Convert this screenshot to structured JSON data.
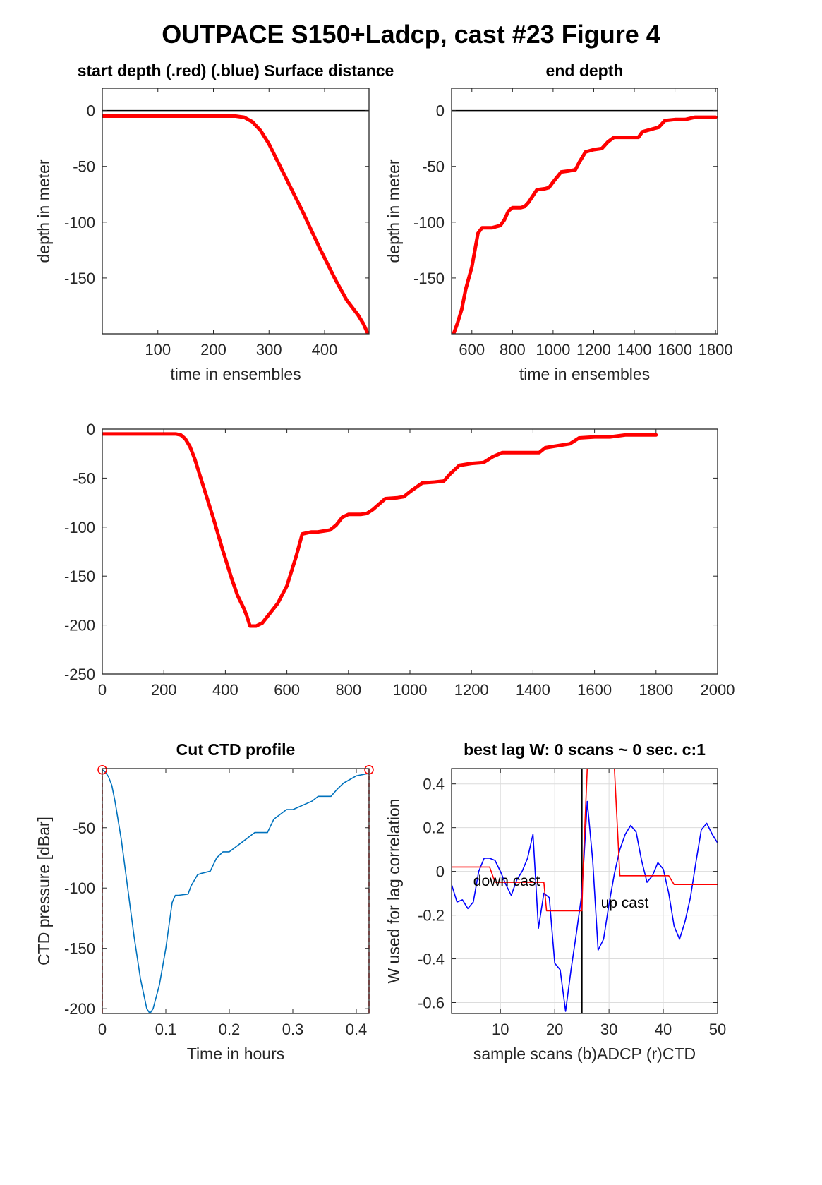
{
  "figure_title": "OUTPACE S150+Ladcp, cast #23    Figure 4",
  "colors": {
    "red": "#ff0000",
    "blue": "#0000ff",
    "ctd_blue": "#0072bd",
    "axis": "#262626",
    "grid": "#dcdcdc"
  },
  "chart_data": [
    {
      "type": "line",
      "title": "start depth (.red) (.blue) Surface distance",
      "xlabel": "time in ensembles",
      "ylabel": "depth in meter",
      "xlim": [
        0,
        480
      ],
      "ylim": [
        -200,
        20
      ],
      "xticks": [
        100,
        200,
        300,
        400
      ],
      "yticks": [
        -150,
        -100,
        -50,
        0
      ],
      "hline": 0,
      "series": [
        {
          "color": "#ff0000",
          "x": [
            0,
            100,
            200,
            240,
            255,
            270,
            285,
            300,
            330,
            360,
            390,
            420,
            440,
            460,
            470,
            478
          ],
          "y": [
            -5,
            -5,
            -5,
            -5,
            -6,
            -10,
            -18,
            -30,
            -60,
            -90,
            -122,
            -152,
            -170,
            -183,
            -191,
            -200
          ]
        }
      ]
    },
    {
      "type": "line",
      "title": "end depth",
      "xlabel": "time in ensembles",
      "ylabel": "depth in meter",
      "xlim": [
        500,
        1810
      ],
      "ylim": [
        -200,
        20
      ],
      "xticks": [
        600,
        800,
        1000,
        1200,
        1400,
        1600,
        1800
      ],
      "yticks": [
        -150,
        -100,
        -50,
        0
      ],
      "hline": 0,
      "series": [
        {
          "color": "#ff0000",
          "x": [
            510,
            530,
            550,
            570,
            600,
            630,
            650,
            680,
            700,
            720,
            740,
            760,
            780,
            800,
            840,
            860,
            880,
            920,
            960,
            980,
            1000,
            1040,
            1080,
            1110,
            1130,
            1160,
            1200,
            1240,
            1270,
            1300,
            1340,
            1380,
            1420,
            1440,
            1500,
            1520,
            1550,
            1600,
            1650,
            1700,
            1750,
            1800
          ],
          "y": [
            -200,
            -190,
            -178,
            -160,
            -140,
            -110,
            -105,
            -105,
            -105,
            -104,
            -103,
            -98,
            -90,
            -87,
            -87,
            -86,
            -82,
            -71,
            -70,
            -69,
            -64,
            -55,
            -54,
            -53,
            -46,
            -37,
            -35,
            -34,
            -28,
            -24,
            -24,
            -24,
            -24,
            -19,
            -16,
            -15,
            -9,
            -8,
            -8,
            -6,
            -6,
            -6
          ]
        }
      ]
    },
    {
      "type": "line",
      "title": "",
      "xlabel": "",
      "ylabel": "",
      "xlim": [
        0,
        2000
      ],
      "ylim": [
        -250,
        0
      ],
      "xticks": [
        0,
        200,
        400,
        600,
        800,
        1000,
        1200,
        1400,
        1600,
        1800,
        2000
      ],
      "yticks": [
        -250,
        -200,
        -150,
        -100,
        -50,
        0
      ],
      "series": [
        {
          "color": "#ff0000",
          "x": [
            0,
            100,
            200,
            240,
            255,
            270,
            285,
            300,
            330,
            360,
            390,
            420,
            440,
            460,
            470,
            480,
            500,
            520,
            540,
            570,
            600,
            630,
            650,
            680,
            700,
            720,
            740,
            760,
            780,
            800,
            840,
            860,
            880,
            920,
            960,
            980,
            1000,
            1040,
            1080,
            1110,
            1130,
            1160,
            1200,
            1240,
            1270,
            1300,
            1340,
            1380,
            1420,
            1440,
            1500,
            1520,
            1550,
            1600,
            1650,
            1700,
            1750,
            1800
          ],
          "y": [
            -5,
            -5,
            -5,
            -5,
            -6,
            -10,
            -18,
            -30,
            -60,
            -90,
            -122,
            -152,
            -170,
            -183,
            -191,
            -201,
            -201,
            -198,
            -190,
            -178,
            -160,
            -130,
            -107,
            -105,
            -105,
            -104,
            -103,
            -98,
            -90,
            -87,
            -87,
            -86,
            -82,
            -71,
            -70,
            -69,
            -64,
            -55,
            -54,
            -53,
            -46,
            -37,
            -35,
            -34,
            -28,
            -24,
            -24,
            -24,
            -24,
            -19,
            -16,
            -15,
            -9,
            -8,
            -8,
            -6,
            -6,
            -6
          ]
        }
      ]
    },
    {
      "type": "line",
      "title": "Cut CTD profile",
      "xlabel": "Time in hours",
      "ylabel": "CTD pressure [dBar]",
      "xlim": [
        0,
        0.42
      ],
      "ylim": [
        -204,
        -1
      ],
      "xticks": [
        0,
        0.1,
        0.2,
        0.3,
        0.4
      ],
      "yticks": [
        -200,
        -150,
        -100,
        -50
      ],
      "series": [
        {
          "color": "#0072bd",
          "x": [
            0,
            0.005,
            0.01,
            0.015,
            0.02,
            0.03,
            0.04,
            0.05,
            0.06,
            0.07,
            0.075,
            0.08,
            0.09,
            0.1,
            0.11,
            0.115,
            0.12,
            0.135,
            0.14,
            0.15,
            0.155,
            0.17,
            0.18,
            0.19,
            0.2,
            0.22,
            0.24,
            0.26,
            0.27,
            0.29,
            0.3,
            0.33,
            0.34,
            0.36,
            0.37,
            0.38,
            0.4,
            0.42
          ],
          "y": [
            -2,
            -4,
            -8,
            -15,
            -28,
            -60,
            -100,
            -140,
            -175,
            -200,
            -204,
            -200,
            -180,
            -150,
            -112,
            -106,
            -106,
            -105,
            -98,
            -89,
            -88,
            -86,
            -75,
            -70,
            -70,
            -62,
            -54,
            -54,
            -43,
            -35,
            -35,
            -28,
            -24,
            -24,
            -18,
            -13,
            -7,
            -5
          ]
        }
      ],
      "markers": [
        {
          "x": 0,
          "y": -2
        },
        {
          "x": 0.42,
          "y": -2
        }
      ],
      "vlines": [
        0,
        0.42
      ]
    },
    {
      "type": "line",
      "title": "best lag W: 0 scans ~ 0 sec.  c:1",
      "xlabel": "sample scans (b)ADCP (r)CTD",
      "ylabel": "W used for lag correlation",
      "xlim": [
        1,
        50
      ],
      "ylim": [
        -0.65,
        0.47
      ],
      "xticks": [
        10,
        20,
        30,
        40,
        50
      ],
      "yticks": [
        -0.6,
        -0.4,
        -0.2,
        0,
        0.2,
        0.4
      ],
      "grid": true,
      "vline": 25,
      "annotations": [
        {
          "text": "down cast",
          "x": 5,
          "y": -0.04
        },
        {
          "text": "up cast",
          "x": 28.5,
          "y": -0.14
        }
      ],
      "series": [
        {
          "name": "ADCP",
          "color": "#0000ff",
          "x": [
            1,
            2,
            3,
            4,
            5,
            6,
            7,
            8,
            9,
            10,
            11,
            12,
            13,
            14,
            15,
            16,
            17,
            18,
            19,
            20,
            21,
            22,
            23,
            24,
            25,
            26,
            27,
            28,
            29,
            30,
            31,
            32,
            33,
            34,
            35,
            36,
            37,
            38,
            39,
            40,
            41,
            42,
            43,
            44,
            45,
            46,
            47,
            48,
            49,
            50
          ],
          "y": [
            -0.06,
            -0.14,
            -0.13,
            -0.17,
            -0.14,
            0.0,
            0.06,
            0.06,
            0.05,
            0.0,
            -0.06,
            -0.11,
            -0.04,
            0.0,
            0.06,
            0.17,
            -0.26,
            -0.1,
            -0.12,
            -0.42,
            -0.45,
            -0.64,
            -0.45,
            -0.28,
            -0.1,
            0.32,
            0.05,
            -0.36,
            -0.31,
            -0.15,
            -0.01,
            0.1,
            0.17,
            0.21,
            0.18,
            0.05,
            -0.05,
            -0.02,
            0.04,
            0.01,
            -0.1,
            -0.25,
            -0.31,
            -0.23,
            -0.12,
            0.04,
            0.19,
            0.22,
            0.17,
            0.13
          ]
        },
        {
          "name": "CTD",
          "color": "#ff0000",
          "x": [
            1,
            8,
            9,
            18,
            18.5,
            25,
            25.2,
            26,
            30.9,
            31,
            32,
            33,
            41,
            42,
            50
          ],
          "y": [
            0.02,
            0.02,
            -0.05,
            -0.05,
            -0.18,
            -0.18,
            0.0,
            0.47,
            0.47,
            0.47,
            -0.02,
            -0.02,
            -0.02,
            -0.06,
            -0.06
          ]
        }
      ]
    }
  ]
}
